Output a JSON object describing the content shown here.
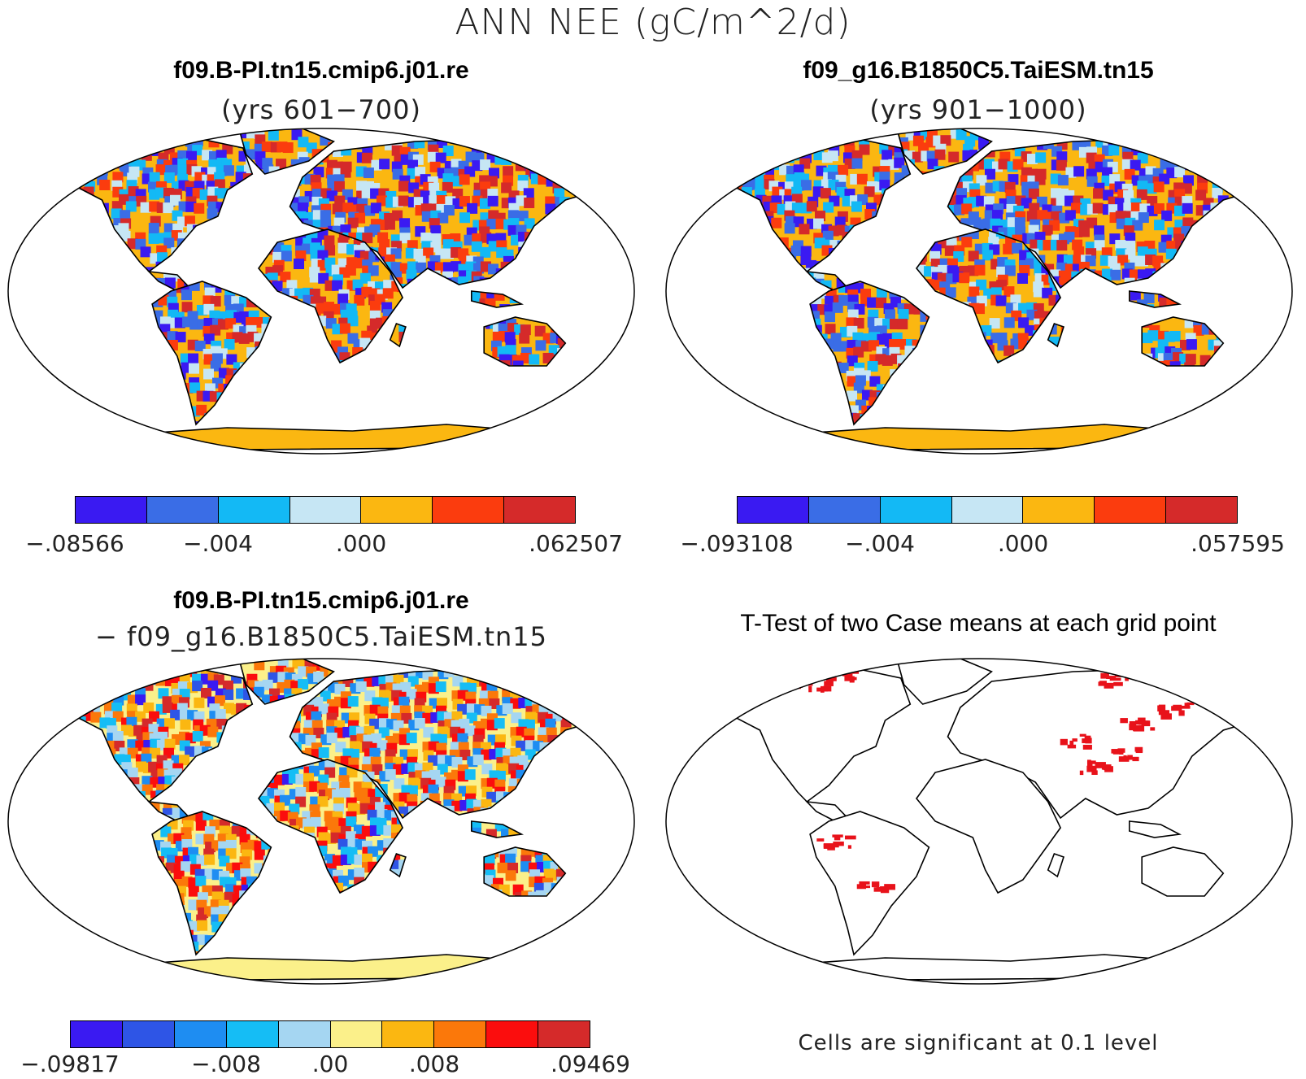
{
  "title": "ANN NEE (gC/m^2/d)",
  "panels": [
    {
      "id": "case1",
      "title": "f09.B-PI.tn15.cmip6.j01.re",
      "subtitle": "(yrs 601−700)",
      "colorbar": {
        "colors": [
          "#3a1af2",
          "#3a6de6",
          "#13b9f5",
          "#c6e6f4",
          "#fbb711",
          "#fb3c0e",
          "#d52a2a"
        ],
        "tick_labels": [
          "−.08566",
          "−.004",
          ".000",
          ".062507"
        ],
        "tick_boundaries": [
          0,
          2,
          4,
          7
        ]
      }
    },
    {
      "id": "case2",
      "title": "f09_g16.B1850C5.TaiESM.tn15",
      "subtitle": "(yrs 901−1000)",
      "colorbar": {
        "colors": [
          "#3a1af2",
          "#3a6de6",
          "#13b9f5",
          "#c6e6f4",
          "#fbb711",
          "#fb3c0e",
          "#d52a2a"
        ],
        "tick_labels": [
          "−.093108",
          "−.004",
          ".000",
          ".057595"
        ],
        "tick_boundaries": [
          0,
          2,
          4,
          7
        ]
      }
    },
    {
      "id": "diff",
      "title": "f09.B-PI.tn15.cmip6.j01.re",
      "subtitle": "− f09_g16.B1850C5.TaiESM.tn15",
      "colorbar": {
        "colors": [
          "#3a1af2",
          "#2e55e6",
          "#1e8df2",
          "#15bdf5",
          "#a5d6f2",
          "#fbf08a",
          "#fbb711",
          "#fb780a",
          "#fb0d0d",
          "#d52a2a"
        ],
        "tick_labels": [
          "−.09817",
          "−.008",
          ".00",
          ".008",
          ".09469"
        ],
        "tick_boundaries": [
          0,
          3,
          5,
          7,
          10
        ]
      }
    },
    {
      "id": "ttest",
      "title": "T-Test of two Case means at each grid point",
      "note": "Cells are significant at 0.1 level",
      "significance_color": "#e8121a"
    }
  ],
  "legend_palette_note": ""
}
